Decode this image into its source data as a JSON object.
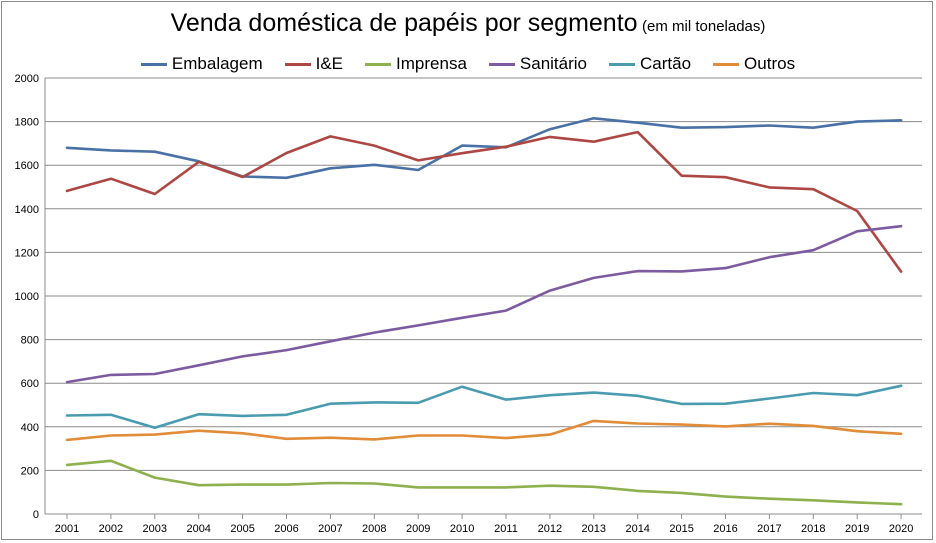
{
  "chart_data": {
    "type": "line",
    "title": "Venda doméstica de papéis por segmento",
    "subtitle": "(em mil toneladas)",
    "xlabel": "",
    "ylabel": "",
    "ylim": [
      0,
      2000
    ],
    "yticks": [
      0,
      200,
      400,
      600,
      800,
      1000,
      1200,
      1400,
      1600,
      1800,
      2000
    ],
    "grid": true,
    "legend_position": "top",
    "categories": [
      "2001",
      "2002",
      "2003",
      "2004",
      "2005",
      "2006",
      "2007",
      "2008",
      "2009",
      "2010",
      "2011",
      "2012",
      "2013",
      "2014",
      "2015",
      "2016",
      "2017",
      "2018",
      "2019",
      "2020"
    ],
    "series": [
      {
        "name": "Embalagem",
        "color": "#4a71a5",
        "values": [
          1680,
          1668,
          1662,
          1618,
          1548,
          1542,
          1586,
          1602,
          1578,
          1690,
          1682,
          1765,
          1815,
          1795,
          1772,
          1775,
          1782,
          1772,
          1800,
          1806
        ]
      },
      {
        "name": "I&E",
        "color": "#ad4744",
        "values": [
          1482,
          1538,
          1468,
          1615,
          1546,
          1656,
          1732,
          1690,
          1622,
          1655,
          1685,
          1730,
          1708,
          1752,
          1552,
          1545,
          1498,
          1490,
          1390,
          1112
        ]
      },
      {
        "name": "Imprensa",
        "color": "#8eb04f",
        "values": [
          225,
          244,
          167,
          132,
          135,
          135,
          142,
          140,
          122,
          122,
          122,
          130,
          125,
          106,
          97,
          80,
          70,
          63,
          53,
          45
        ]
      },
      {
        "name": "Sanitário",
        "color": "#7c5ba0",
        "values": [
          605,
          638,
          642,
          682,
          723,
          752,
          792,
          832,
          865,
          900,
          933,
          1025,
          1083,
          1114,
          1113,
          1128,
          1178,
          1210,
          1297,
          1320
        ]
      },
      {
        "name": "Cartão",
        "color": "#4a9bb0",
        "values": [
          452,
          455,
          396,
          458,
          450,
          455,
          506,
          512,
          510,
          584,
          525,
          545,
          557,
          542,
          505,
          506,
          530,
          555,
          545,
          588
        ]
      },
      {
        "name": "Outros",
        "color": "#e08c38",
        "values": [
          340,
          360,
          364,
          382,
          370,
          345,
          350,
          342,
          360,
          360,
          348,
          364,
          427,
          415,
          410,
          402,
          414,
          404,
          380,
          368
        ]
      }
    ]
  }
}
